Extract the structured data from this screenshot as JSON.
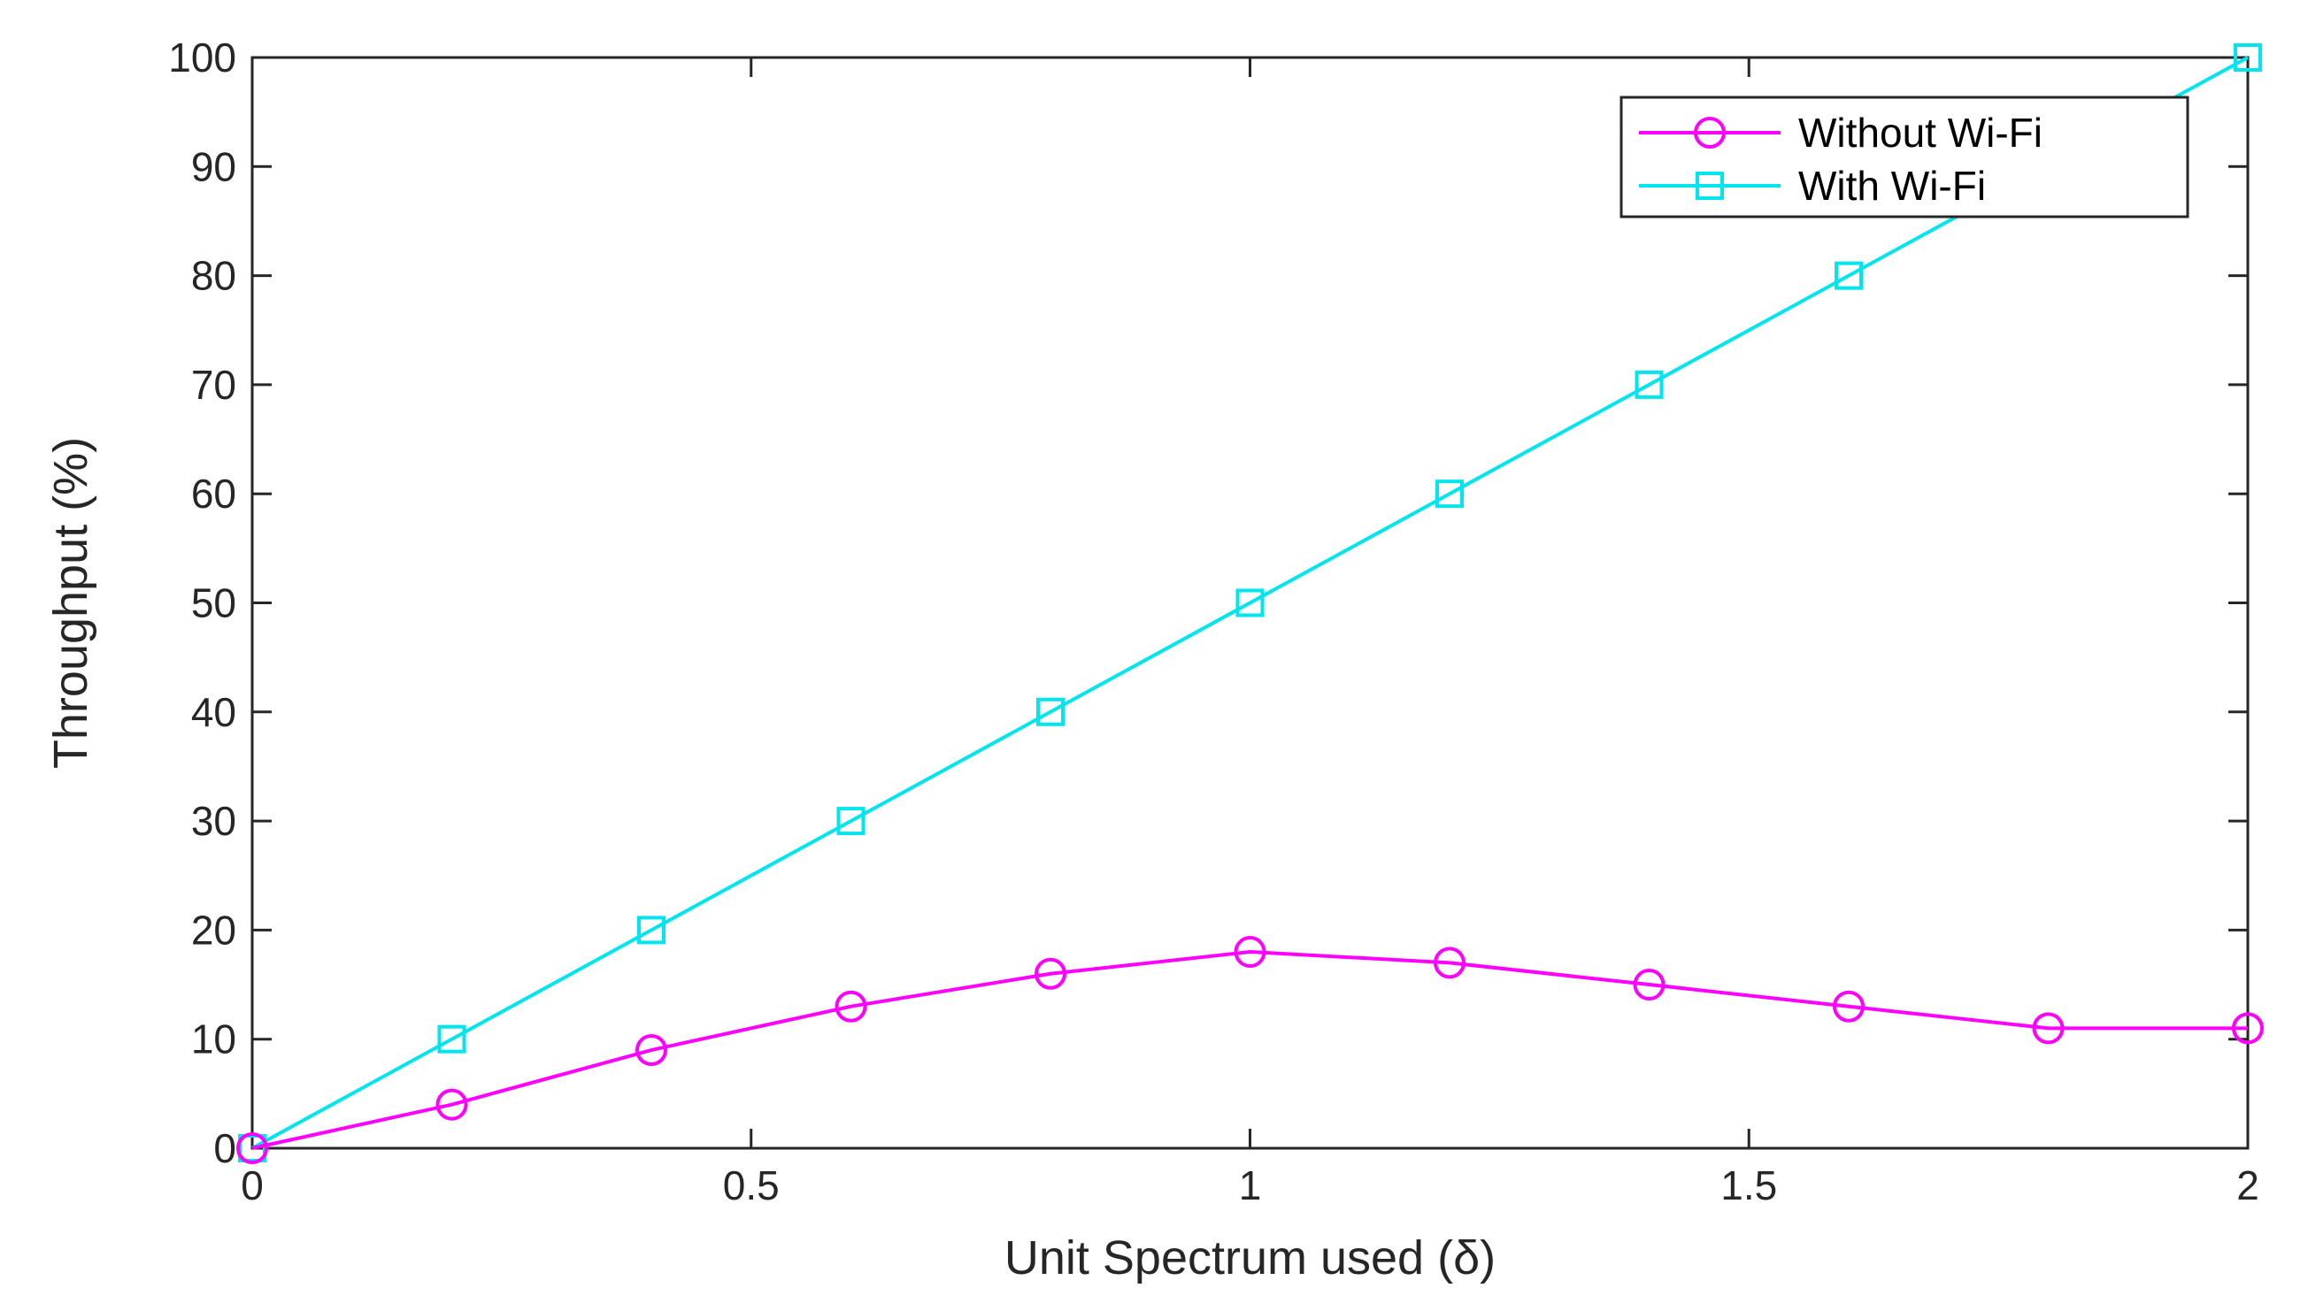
{
  "chart_data": {
    "type": "line",
    "xlabel": "Unit Spectrum used (δ)",
    "ylabel": "Throughput (%)",
    "xlim": [
      0,
      2
    ],
    "ylim": [
      0,
      100
    ],
    "xticks": [
      0,
      0.5,
      1,
      1.5,
      2
    ],
    "xtick_labels": [
      "0",
      "0.5",
      "1",
      "1.5",
      "2"
    ],
    "yticks": [
      0,
      10,
      20,
      30,
      40,
      50,
      60,
      70,
      80,
      90,
      100
    ],
    "ytick_labels": [
      "0",
      "10",
      "20",
      "30",
      "40",
      "50",
      "60",
      "70",
      "80",
      "90",
      "100"
    ],
    "grid": false,
    "legend_position": "top-right",
    "x": [
      0,
      0.2,
      0.4,
      0.6,
      0.8,
      1.0,
      1.2,
      1.4,
      1.6,
      1.8,
      2.0
    ],
    "series": [
      {
        "name": "Without Wi-Fi",
        "marker": "circle",
        "color": "#ff00ff",
        "values": [
          0,
          4,
          9,
          13,
          16,
          18,
          17,
          15,
          13,
          11,
          11
        ]
      },
      {
        "name": "With Wi-Fi",
        "marker": "square",
        "color": "#00e5ee",
        "values": [
          0,
          10,
          20,
          30,
          40,
          50,
          60,
          70,
          80,
          90,
          100
        ]
      }
    ]
  }
}
